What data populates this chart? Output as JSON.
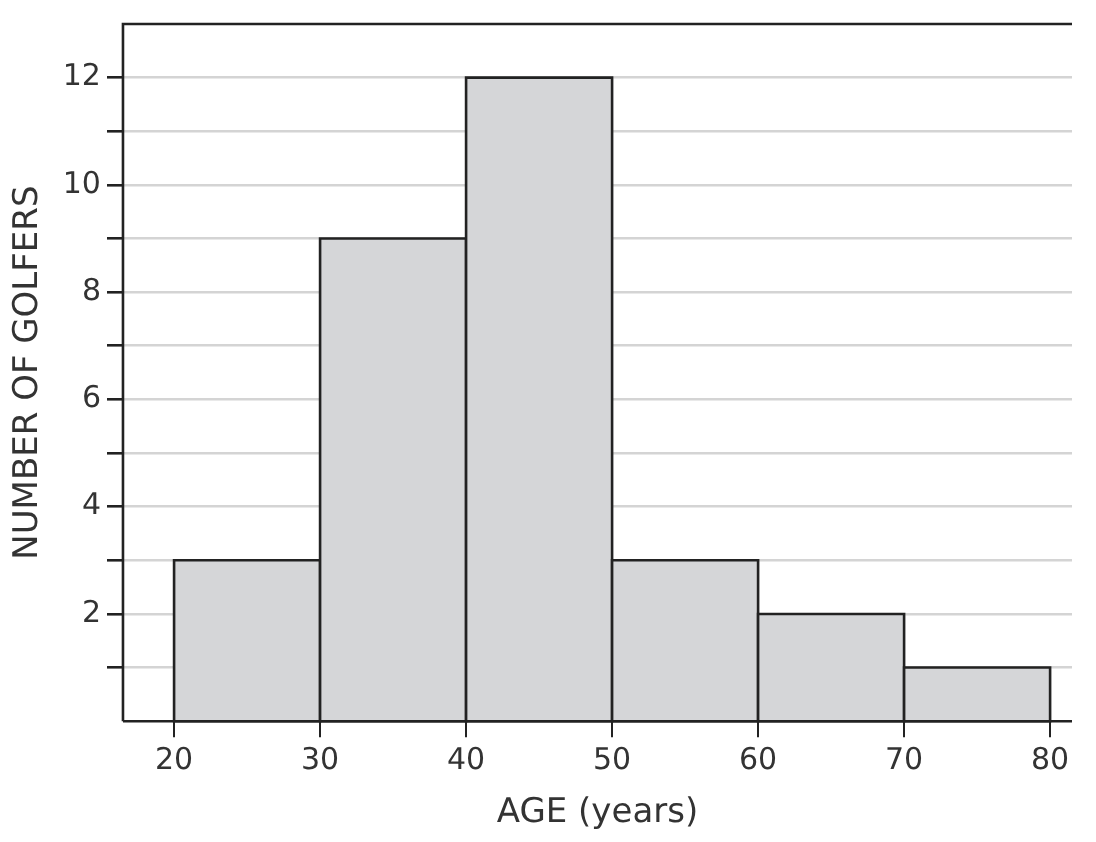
{
  "chart_data": {
    "type": "histogram",
    "xlabel": "AGE (years)",
    "ylabel": "NUMBER OF GOLFERS",
    "bins": [
      20,
      30,
      40,
      50,
      60,
      70,
      80
    ],
    "values": [
      3,
      9,
      12,
      3,
      2,
      1
    ],
    "color": "#d5d6d8",
    "xlim": [
      16.5,
      81.5
    ],
    "xticks": [
      20,
      30,
      40,
      50,
      60,
      70,
      80
    ],
    "ylim": [
      0,
      13
    ],
    "yticks": [
      {
        "value": 1,
        "label": null
      },
      2,
      {
        "value": 3,
        "label": null
      },
      4,
      {
        "value": 5,
        "label": null
      },
      6,
      {
        "value": 7,
        "label": null
      },
      8,
      {
        "value": 9,
        "label": null
      },
      10,
      {
        "value": 11,
        "label": null
      },
      12
    ],
    "grid": "y",
    "legend": false
  }
}
